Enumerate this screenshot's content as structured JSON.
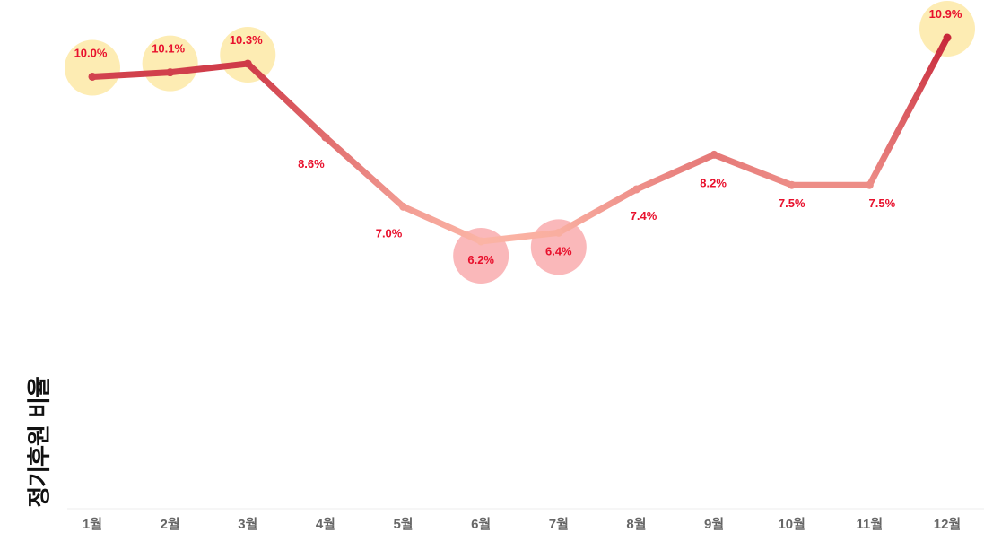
{
  "chart_data": {
    "type": "line",
    "title": "",
    "xlabel": "",
    "ylabel": "정기후원 비율",
    "categories": [
      "1월",
      "2월",
      "3월",
      "4월",
      "5월",
      "6월",
      "7월",
      "8월",
      "9월",
      "10월",
      "11월",
      "12월"
    ],
    "values": [
      10.0,
      10.1,
      10.3,
      8.6,
      7.0,
      6.2,
      6.4,
      7.4,
      8.2,
      7.5,
      7.5,
      10.9
    ],
    "data_labels": [
      "10.0%",
      "10.1%",
      "10.3%",
      "8.6%",
      "7.0%",
      "6.2%",
      "6.4%",
      "7.4%",
      "8.2%",
      "7.5%",
      "7.5%",
      "10.9%"
    ],
    "highlight_high": [
      "1월",
      "2월",
      "3월",
      "12월"
    ],
    "highlight_low": [
      "6월",
      "7월"
    ],
    "grid": false,
    "legend": "none",
    "colors": {
      "line_high": "#c8283a",
      "line_low": "#fbb4a5",
      "label": "#e8112d",
      "highlight_high": "#fde9a6",
      "highlight_low": "#f8a0a3",
      "tick": "#666666",
      "baseline": "#eeeeee"
    }
  }
}
